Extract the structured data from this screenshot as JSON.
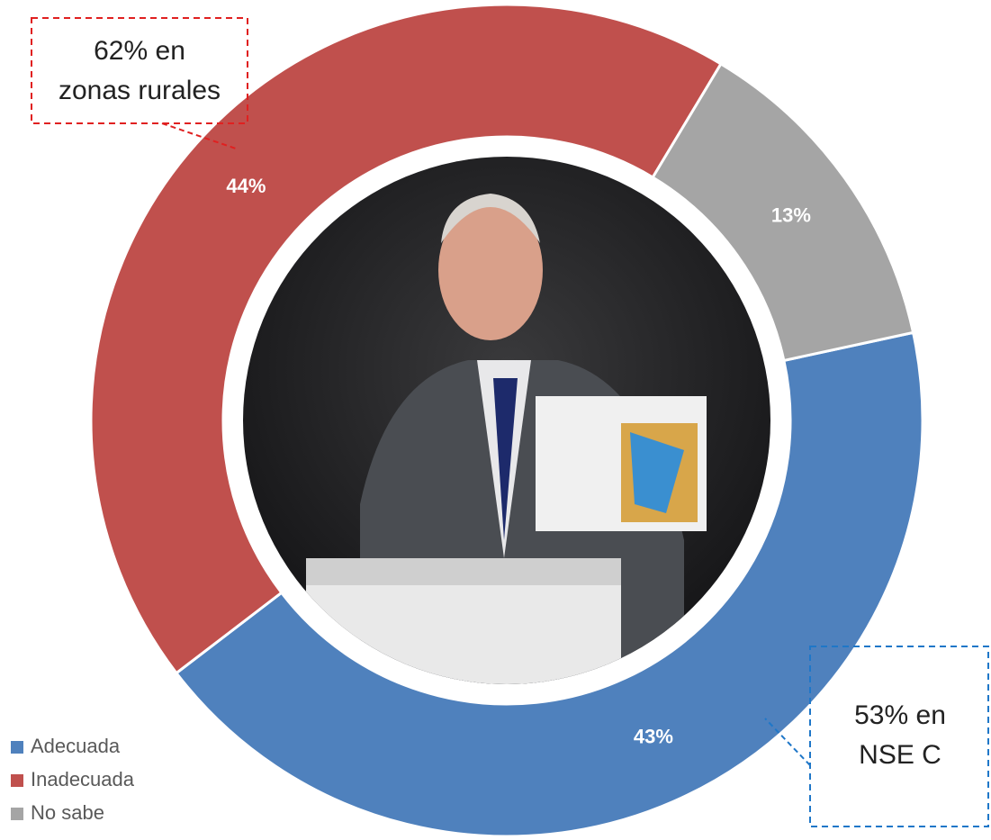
{
  "chart_data": {
    "type": "donut",
    "categories": [
      "Adecuada",
      "Inadecuada",
      "No sabe"
    ],
    "values": [
      43,
      44,
      13
    ],
    "value_labels": [
      "43%",
      "44%",
      "13%"
    ],
    "colors": [
      "#4f81bd",
      "#c0504d",
      "#a5a5a5"
    ],
    "legend": "bottom-left",
    "annotations": [
      [
        "62% en",
        "zonas rurales"
      ],
      [
        "53% en",
        "NSE C"
      ]
    ]
  }
}
